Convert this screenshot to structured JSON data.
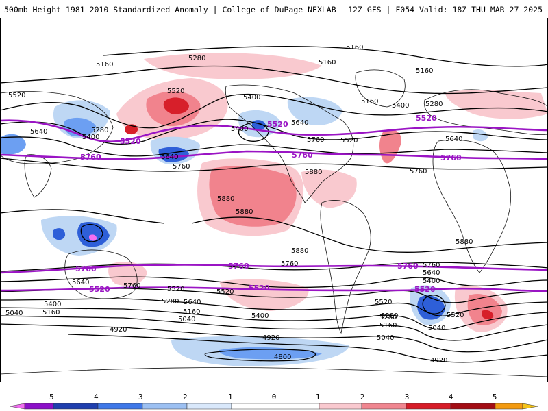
{
  "header": {
    "title_left": "500mb Height 1981–2010 Standardized Anomaly | College of DuPage NEXLAB",
    "title_right": "12Z GFS | F054 Valid: 18Z THU MAR 27 2025"
  },
  "colors": {
    "contour": "#000000",
    "highlight_contour": "#9a14c4",
    "pos_1": "#f9c9cf",
    "pos_2": "#f1838d",
    "pos_3": "#d71f2a",
    "neg_1": "#bed7f4",
    "neg_2": "#6c9ff2",
    "neg_3": "#2e5fd8",
    "neg_4": "#8c10c8",
    "land_outline": "#111111"
  },
  "map": {
    "contour_labels": [
      "5160",
      "5280",
      "5160",
      "5160",
      "5160",
      "5520",
      "5400",
      "5160",
      "5400",
      "5280",
      "5640",
      "5280",
      "5400",
      "5520",
      "5640",
      "5760",
      "5520",
      "5640",
      "5640",
      "5760",
      "5760",
      "5880",
      "5880",
      "5880",
      "5880",
      "5760",
      "5640",
      "5520",
      "5400",
      "5280",
      "5160",
      "5040",
      "5760",
      "5520",
      "5640",
      "5400",
      "5520",
      "5280",
      "5160",
      "5040",
      "4920",
      "4920",
      "4800",
      "5040",
      "4920",
      "5160",
      "5280",
      "5400",
      "5520",
      "5640",
      "5760",
      "5880",
      "5400",
      "5040"
    ],
    "highlight_labels": [
      "5520",
      "5520",
      "5520",
      "5760",
      "5760",
      "5760",
      "5760",
      "5760",
      "5760",
      "5520",
      "5520",
      "5520"
    ]
  },
  "legend": {
    "ticks": [
      "−5",
      "−4",
      "−3",
      "−2",
      "−1",
      "0",
      "1",
      "2",
      "3",
      "4",
      "5"
    ],
    "colors": [
      "#f16ef1",
      "#8c10c8",
      "#1f3fae",
      "#3f78e8",
      "#9cc0f2",
      "#d9e8fb",
      "#ffffff",
      "#f9c9cf",
      "#f08690",
      "#d61c28",
      "#a30d14",
      "#f39a10",
      "#f5c418"
    ]
  }
}
